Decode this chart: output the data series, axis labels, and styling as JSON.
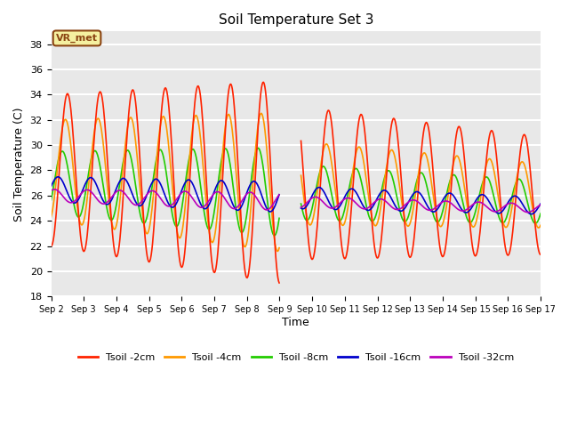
{
  "title": "Soil Temperature Set 3",
  "xlabel": "Time",
  "ylabel": "Soil Temperature (C)",
  "ylim": [
    18,
    39
  ],
  "yticks": [
    18,
    20,
    22,
    24,
    26,
    28,
    30,
    32,
    34,
    36,
    38
  ],
  "bg_color": "#e8e8e8",
  "grid_color": "white",
  "annotation_text": "VR_met",
  "annotation_bg": "#f5f0a0",
  "annotation_border": "#8B4513",
  "colors": {
    "2cm": "#ff2200",
    "4cm": "#ff9900",
    "8cm": "#22cc00",
    "16cm": "#0000cc",
    "32cm": "#bb00bb"
  },
  "legend_labels": [
    "Tsoil -2cm",
    "Tsoil -4cm",
    "Tsoil -8cm",
    "Tsoil -16cm",
    "Tsoil -32cm"
  ],
  "x_tick_labels": [
    "Sep 2",
    "Sep 3",
    "Sep 4",
    "Sep 5",
    "Sep 6",
    "Sep 7",
    "Sep 8",
    "Sep 9",
    "Sep 10",
    "Sep 11",
    "Sep 12",
    "Sep 13",
    "Sep 14",
    "Sep 15",
    "Sep 16",
    "Sep 17"
  ],
  "figsize": [
    6.4,
    4.8
  ],
  "dpi": 100
}
